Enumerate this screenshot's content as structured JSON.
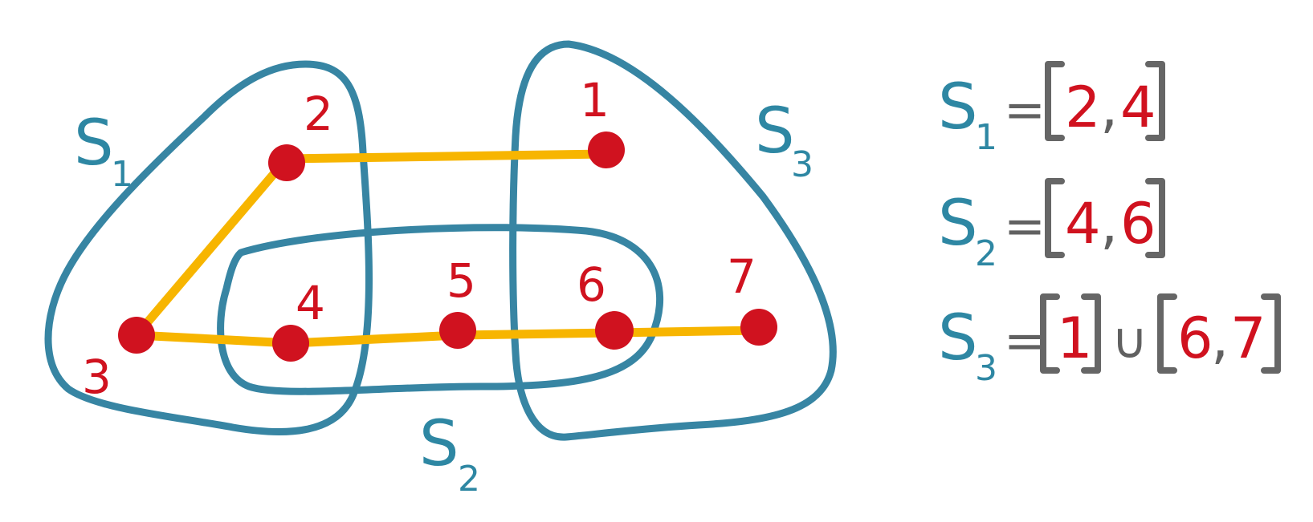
{
  "colors": {
    "set_outline": "#3785a3",
    "node": "#d0121f",
    "edge": "#f7b500",
    "bracket": "#666666"
  },
  "sets": [
    {
      "id": "S1",
      "letter": "S",
      "sub": "1"
    },
    {
      "id": "S2",
      "letter": "S",
      "sub": "2"
    },
    {
      "id": "S3",
      "letter": "S",
      "sub": "3"
    }
  ],
  "nodes": [
    {
      "label": "1"
    },
    {
      "label": "2"
    },
    {
      "label": "3"
    },
    {
      "label": "4"
    },
    {
      "label": "5"
    },
    {
      "label": "6"
    },
    {
      "label": "7"
    }
  ],
  "edges": [
    {
      "from": "2",
      "to": "1"
    },
    {
      "from": "2",
      "to": "3"
    },
    {
      "from": "3",
      "to": "4"
    },
    {
      "from": "4",
      "to": "5"
    },
    {
      "from": "5",
      "to": "6"
    },
    {
      "from": "6",
      "to": "7"
    }
  ],
  "equations": [
    {
      "set": "S",
      "sub": "1",
      "eq": "=",
      "intervals": [
        {
          "start": "2",
          "sep": ",",
          "end": "4"
        }
      ]
    },
    {
      "set": "S",
      "sub": "2",
      "eq": "=",
      "intervals": [
        {
          "start": "4",
          "sep": ",",
          "end": "6"
        }
      ]
    },
    {
      "set": "S",
      "sub": "3",
      "eq": "=",
      "union": "∪",
      "intervals": [
        {
          "start": "1"
        },
        {
          "start": "6",
          "sep": ",",
          "end": "7"
        }
      ]
    }
  ]
}
